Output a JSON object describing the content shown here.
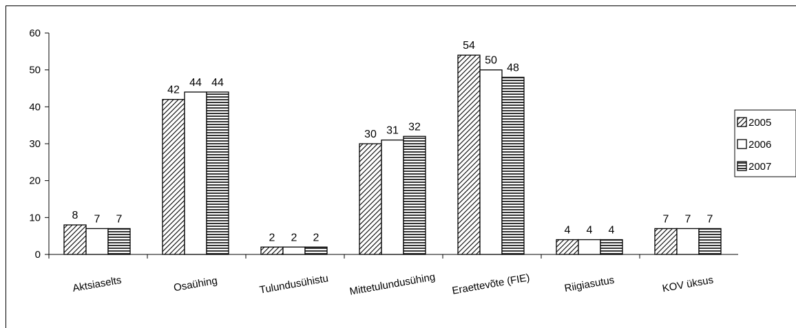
{
  "chart_data": {
    "type": "bar",
    "categories": [
      "Aktsiaselts",
      "Osaühing",
      "Tulundusühistu",
      "Mittetulundusühing",
      "Eraettevõte (FIE)",
      "Riigiasutus",
      "KOV üksus"
    ],
    "series": [
      {
        "name": "2005",
        "values": [
          8,
          42,
          2,
          30,
          54,
          4,
          7
        ],
        "pattern": "diagonal-hatch"
      },
      {
        "name": "2006",
        "values": [
          7,
          44,
          2,
          31,
          50,
          4,
          7
        ],
        "pattern": "solid-white"
      },
      {
        "name": "2007",
        "values": [
          7,
          44,
          2,
          32,
          48,
          4,
          7
        ],
        "pattern": "horizontal-stripes"
      }
    ],
    "ylim": [
      0,
      60
    ],
    "yticks": [
      0,
      10,
      20,
      30,
      40,
      50,
      60
    ],
    "data_labels": true,
    "grid": false,
    "legend_position": "right",
    "colors": {
      "bar_outline": "#000000",
      "bar_fill": "#ffffff",
      "text": "#000000"
    }
  }
}
